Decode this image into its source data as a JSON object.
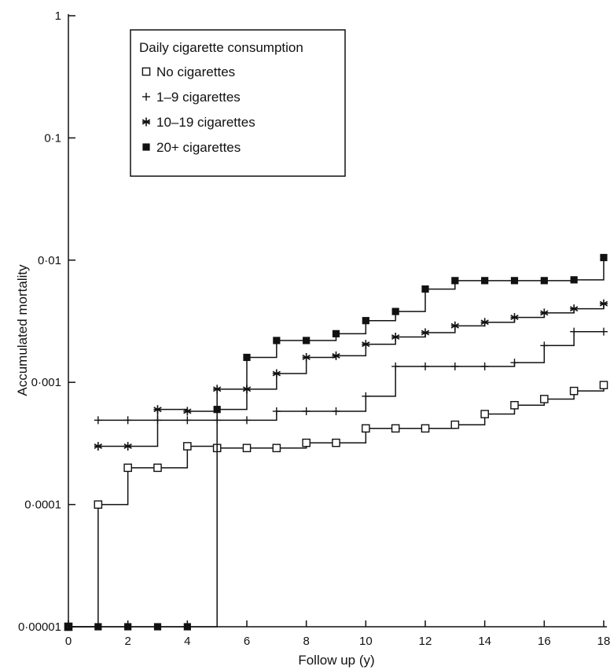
{
  "chart_data": {
    "type": "line",
    "step": true,
    "title": "",
    "xlabel": "Follow up (y)",
    "ylabel": "Accumulated mortality",
    "xlim": [
      0,
      18
    ],
    "ylim": [
      1e-05,
      1
    ],
    "yscale": "log",
    "grid": false,
    "xticks": [
      0,
      2,
      4,
      6,
      8,
      10,
      12,
      14,
      16,
      18
    ],
    "yticks": [
      {
        "value": 1e-05,
        "label": "0·00001"
      },
      {
        "value": 0.0001,
        "label": "0·0001"
      },
      {
        "value": 0.001,
        "label": "0·001"
      },
      {
        "value": 0.01,
        "label": "0·01"
      },
      {
        "value": 0.1,
        "label": "0·1"
      },
      {
        "value": 1,
        "label": "1"
      }
    ],
    "legend": {
      "title": "Daily cigarette consumption",
      "placement": "top-left"
    },
    "series": [
      {
        "name": "No cigarettes",
        "marker": "open-square",
        "x": [
          0,
          1,
          2,
          3,
          4,
          5,
          6,
          7,
          8,
          9,
          10,
          11,
          12,
          13,
          14,
          15,
          16,
          17,
          18
        ],
        "y": [
          1e-05,
          0.0001,
          0.0002,
          0.0002,
          0.0003,
          0.00029,
          0.00029,
          0.00029,
          0.00032,
          0.00032,
          0.00042,
          0.00042,
          0.00042,
          0.00045,
          0.00055,
          0.00065,
          0.00073,
          0.00085,
          0.00095
        ]
      },
      {
        "name": "1–9 cigarettes",
        "marker": "plus",
        "x": [
          1,
          2,
          3,
          4,
          5,
          6,
          7,
          8,
          9,
          10,
          11,
          12,
          13,
          14,
          15,
          16,
          17,
          18
        ],
        "y": [
          0.00049,
          0.00049,
          0.00049,
          0.00049,
          0.00049,
          0.00049,
          0.00058,
          0.00058,
          0.00058,
          0.00077,
          0.00135,
          0.00135,
          0.00135,
          0.00135,
          0.00145,
          0.002,
          0.0026,
          0.0026
        ]
      },
      {
        "name": "10–19 cigarettes",
        "marker": "asterisk",
        "x": [
          1,
          2,
          3,
          4,
          5,
          6,
          7,
          8,
          9,
          10,
          11,
          12,
          13,
          14,
          15,
          16,
          17,
          18
        ],
        "y": [
          0.0003,
          0.0003,
          0.0006,
          0.00058,
          0.00088,
          0.00088,
          0.00118,
          0.0016,
          0.00165,
          0.00205,
          0.00235,
          0.00255,
          0.0029,
          0.0031,
          0.0034,
          0.0037,
          0.004,
          0.0044
        ]
      },
      {
        "name": "20+ cigarettes",
        "marker": "filled-square",
        "x": [
          0,
          1,
          2,
          3,
          4,
          5,
          6,
          7,
          8,
          9,
          10,
          11,
          12,
          13,
          14,
          15,
          16,
          17,
          18
        ],
        "y": [
          1e-05,
          1e-05,
          1e-05,
          1e-05,
          1e-05,
          0.0006,
          0.0016,
          0.0022,
          0.0022,
          0.0025,
          0.0032,
          0.0038,
          0.0058,
          0.0068,
          0.0068,
          0.0068,
          0.0068,
          0.0069,
          0.0105
        ]
      }
    ]
  }
}
